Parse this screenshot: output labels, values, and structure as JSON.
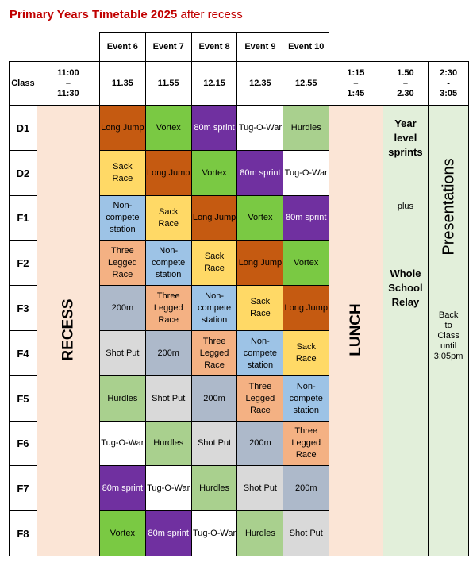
{
  "title": {
    "bold": "Primary Years Timetable 2025",
    "rest": "after recess"
  },
  "events": [
    "Event 6",
    "Event 7",
    "Event 8",
    "Event 9",
    "Event 10"
  ],
  "times": {
    "class_label": "Class",
    "recess_time": "11:00\n–\n11:30",
    "slots": [
      "11.35",
      "11.55",
      "12.15",
      "12.35",
      "12.55"
    ],
    "lunch_time": "1:15\n–\n1:45",
    "sprints_time": "1.50\n–\n2.30",
    "pres_time": "2:30\n-\n3:05"
  },
  "labels": {
    "recess": "RECESS",
    "lunch": "LUNCH",
    "presentations": "Presentations",
    "year_level": "Year\nlevel\nsprints",
    "plus": "plus",
    "relay": "Whole\nSchool\nRelay",
    "back": "Back\nto\nClass\nuntil\n3:05pm"
  },
  "rows": [
    {
      "cls": "D1",
      "cells": [
        {
          "t": "Long Jump",
          "c": "long"
        },
        {
          "t": "Vortex",
          "c": "vortex"
        },
        {
          "t": "80m sprint",
          "c": "sprint"
        },
        {
          "t": "Tug-O-War",
          "c": "tug"
        },
        {
          "t": "Hurdles",
          "c": "hurdle"
        }
      ]
    },
    {
      "cls": "D2",
      "cells": [
        {
          "t": "Sack\nRace",
          "c": "sack"
        },
        {
          "t": "Long Jump",
          "c": "long"
        },
        {
          "t": "Vortex",
          "c": "vortex"
        },
        {
          "t": "80m sprint",
          "c": "sprint"
        },
        {
          "t": "Tug-O-War",
          "c": "tug"
        }
      ]
    },
    {
      "cls": "F1",
      "cells": [
        {
          "t": "Non-\ncompete\nstation",
          "c": "non"
        },
        {
          "t": "Sack\nRace",
          "c": "sack"
        },
        {
          "t": "Long Jump",
          "c": "long"
        },
        {
          "t": "Vortex",
          "c": "vortex"
        },
        {
          "t": "80m sprint",
          "c": "sprint"
        }
      ]
    },
    {
      "cls": "F2",
      "cells": [
        {
          "t": "Three\nLegged\nRace",
          "c": "three"
        },
        {
          "t": "Non-\ncompete\nstation",
          "c": "non"
        },
        {
          "t": "Sack\nRace",
          "c": "sack"
        },
        {
          "t": "Long Jump",
          "c": "long"
        },
        {
          "t": "Vortex",
          "c": "vortex"
        }
      ]
    },
    {
      "cls": "F3",
      "cells": [
        {
          "t": "200m",
          "c": "200"
        },
        {
          "t": "Three\nLegged\nRace",
          "c": "three"
        },
        {
          "t": "Non-\ncompete\nstation",
          "c": "non"
        },
        {
          "t": "Sack\nRace",
          "c": "sack"
        },
        {
          "t": "Long Jump",
          "c": "long"
        }
      ]
    },
    {
      "cls": "F4",
      "cells": [
        {
          "t": "Shot Put",
          "c": "shot"
        },
        {
          "t": "200m",
          "c": "200"
        },
        {
          "t": "Three\nLegged\nRace",
          "c": "three"
        },
        {
          "t": "Non-\ncompete\nstation",
          "c": "non"
        },
        {
          "t": "Sack\nRace",
          "c": "sack"
        }
      ]
    },
    {
      "cls": "F5",
      "cells": [
        {
          "t": "Hurdles",
          "c": "hurdle"
        },
        {
          "t": "Shot Put",
          "c": "shot"
        },
        {
          "t": "200m",
          "c": "200"
        },
        {
          "t": "Three\nLegged\nRace",
          "c": "three"
        },
        {
          "t": "Non-\ncompete\nstation",
          "c": "non"
        }
      ]
    },
    {
      "cls": "F6",
      "cells": [
        {
          "t": "Tug-O-War",
          "c": "tug"
        },
        {
          "t": "Hurdles",
          "c": "hurdle"
        },
        {
          "t": "Shot Put",
          "c": "shot"
        },
        {
          "t": "200m",
          "c": "200"
        },
        {
          "t": "Three\nLegged\nRace",
          "c": "three"
        }
      ]
    },
    {
      "cls": "F7",
      "cells": [
        {
          "t": "80m sprint",
          "c": "sprint"
        },
        {
          "t": "Tug-O-War",
          "c": "tug"
        },
        {
          "t": "Hurdles",
          "c": "hurdle"
        },
        {
          "t": "Shot Put",
          "c": "shot"
        },
        {
          "t": "200m",
          "c": "200"
        }
      ]
    },
    {
      "cls": "F8",
      "cells": [
        {
          "t": "Vortex",
          "c": "vortex"
        },
        {
          "t": "80m sprint",
          "c": "sprint"
        },
        {
          "t": "Tug-O-War",
          "c": "tug"
        },
        {
          "t": "Hurdles",
          "c": "hurdle"
        },
        {
          "t": "Shot Put",
          "c": "shot"
        }
      ]
    }
  ]
}
